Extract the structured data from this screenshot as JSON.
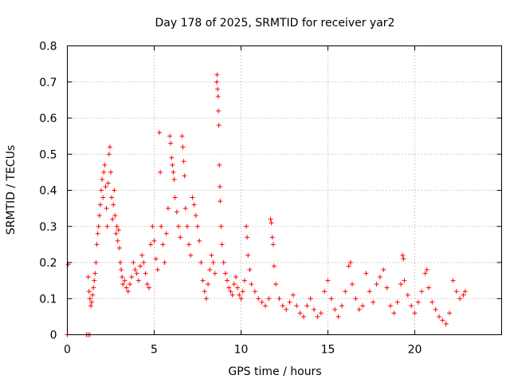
{
  "chart_data": {
    "type": "scatter",
    "title": "Day 178 of 2025, SRMTID for receiver yar2",
    "xlabel": "GPS time / hours",
    "ylabel": "SRMTID / TECUs",
    "xlim": [
      0,
      25
    ],
    "ylim": [
      0,
      0.8
    ],
    "xticks": [
      0,
      5,
      10,
      15,
      20
    ],
    "xtick_labels": [
      "0",
      "5",
      "10",
      "15",
      "20"
    ],
    "yticks": [
      0,
      0.1,
      0.2,
      0.3,
      0.4,
      0.5,
      0.6,
      0.7,
      0.8
    ],
    "ytick_labels": [
      "0",
      "0.1",
      "0.2",
      "0.3",
      "0.4",
      "0.5",
      "0.6",
      "0.7",
      "0.8"
    ],
    "grid": true,
    "marker": "+",
    "series_color": "#ff0000",
    "series": [
      {
        "name": "SRMTID",
        "points": [
          [
            0.0,
            0.0
          ],
          [
            0.05,
            0.195
          ],
          [
            1.1,
            0.0
          ],
          [
            1.2,
            0.0
          ],
          [
            1.3,
            0.0
          ],
          [
            1.2,
            0.16
          ],
          [
            1.25,
            0.12
          ],
          [
            1.3,
            0.1
          ],
          [
            1.35,
            0.08
          ],
          [
            1.4,
            0.09
          ],
          [
            1.45,
            0.11
          ],
          [
            1.5,
            0.13
          ],
          [
            1.55,
            0.15
          ],
          [
            1.6,
            0.17
          ],
          [
            1.65,
            0.2
          ],
          [
            1.7,
            0.25
          ],
          [
            1.75,
            0.28
          ],
          [
            1.8,
            0.3
          ],
          [
            1.85,
            0.33
          ],
          [
            1.9,
            0.36
          ],
          [
            1.95,
            0.4
          ],
          [
            2.0,
            0.43
          ],
          [
            2.05,
            0.38
          ],
          [
            2.1,
            0.45
          ],
          [
            2.15,
            0.47
          ],
          [
            2.2,
            0.41
          ],
          [
            2.25,
            0.35
          ],
          [
            2.3,
            0.3
          ],
          [
            2.35,
            0.42
          ],
          [
            2.4,
            0.5
          ],
          [
            2.45,
            0.52
          ],
          [
            2.5,
            0.45
          ],
          [
            2.55,
            0.38
          ],
          [
            2.6,
            0.32
          ],
          [
            2.65,
            0.36
          ],
          [
            2.7,
            0.4
          ],
          [
            2.75,
            0.33
          ],
          [
            2.8,
            0.28
          ],
          [
            2.85,
            0.3
          ],
          [
            2.9,
            0.26
          ],
          [
            2.95,
            0.29
          ],
          [
            3.0,
            0.24
          ],
          [
            3.05,
            0.2
          ],
          [
            3.1,
            0.18
          ],
          [
            3.15,
            0.16
          ],
          [
            3.2,
            0.14
          ],
          [
            3.3,
            0.15
          ],
          [
            3.4,
            0.13
          ],
          [
            3.5,
            0.12
          ],
          [
            3.6,
            0.14
          ],
          [
            3.7,
            0.16
          ],
          [
            3.8,
            0.2
          ],
          [
            3.9,
            0.18
          ],
          [
            4.0,
            0.17
          ],
          [
            4.1,
            0.15
          ],
          [
            4.2,
            0.19
          ],
          [
            4.3,
            0.22
          ],
          [
            4.4,
            0.2
          ],
          [
            4.5,
            0.17
          ],
          [
            4.6,
            0.14
          ],
          [
            4.7,
            0.13
          ],
          [
            4.8,
            0.25
          ],
          [
            4.9,
            0.3
          ],
          [
            5.0,
            0.26
          ],
          [
            5.1,
            0.21
          ],
          [
            5.2,
            0.18
          ],
          [
            5.3,
            0.56
          ],
          [
            5.35,
            0.45
          ],
          [
            5.4,
            0.3
          ],
          [
            5.5,
            0.25
          ],
          [
            5.6,
            0.2
          ],
          [
            5.7,
            0.28
          ],
          [
            5.8,
            0.35
          ],
          [
            5.9,
            0.55
          ],
          [
            5.95,
            0.53
          ],
          [
            6.0,
            0.49
          ],
          [
            6.05,
            0.47
          ],
          [
            6.1,
            0.45
          ],
          [
            6.15,
            0.43
          ],
          [
            6.2,
            0.38
          ],
          [
            6.3,
            0.34
          ],
          [
            6.4,
            0.3
          ],
          [
            6.5,
            0.27
          ],
          [
            6.6,
            0.55
          ],
          [
            6.65,
            0.52
          ],
          [
            6.7,
            0.48
          ],
          [
            6.75,
            0.44
          ],
          [
            6.8,
            0.35
          ],
          [
            6.9,
            0.3
          ],
          [
            7.0,
            0.25
          ],
          [
            7.1,
            0.22
          ],
          [
            7.2,
            0.38
          ],
          [
            7.3,
            0.36
          ],
          [
            7.4,
            0.33
          ],
          [
            7.5,
            0.3
          ],
          [
            7.6,
            0.26
          ],
          [
            7.7,
            0.2
          ],
          [
            7.8,
            0.15
          ],
          [
            7.9,
            0.12
          ],
          [
            8.0,
            0.1
          ],
          [
            8.1,
            0.14
          ],
          [
            8.2,
            0.18
          ],
          [
            8.3,
            0.22
          ],
          [
            8.4,
            0.2
          ],
          [
            8.5,
            0.17
          ],
          [
            8.6,
            0.7
          ],
          [
            8.62,
            0.72
          ],
          [
            8.65,
            0.68
          ],
          [
            8.68,
            0.66
          ],
          [
            8.7,
            0.62
          ],
          [
            8.72,
            0.58
          ],
          [
            8.75,
            0.47
          ],
          [
            8.78,
            0.41
          ],
          [
            8.8,
            0.37
          ],
          [
            8.85,
            0.3
          ],
          [
            8.9,
            0.25
          ],
          [
            9.0,
            0.2
          ],
          [
            9.1,
            0.17
          ],
          [
            9.2,
            0.15
          ],
          [
            9.3,
            0.13
          ],
          [
            9.4,
            0.12
          ],
          [
            9.5,
            0.11
          ],
          [
            9.6,
            0.14
          ],
          [
            9.7,
            0.16
          ],
          [
            9.8,
            0.13
          ],
          [
            9.9,
            0.11
          ],
          [
            10.0,
            0.1
          ],
          [
            10.1,
            0.12
          ],
          [
            10.2,
            0.15
          ],
          [
            10.3,
            0.3
          ],
          [
            10.35,
            0.27
          ],
          [
            10.4,
            0.22
          ],
          [
            10.5,
            0.18
          ],
          [
            10.6,
            0.14
          ],
          [
            10.8,
            0.12
          ],
          [
            11.0,
            0.1
          ],
          [
            11.2,
            0.09
          ],
          [
            11.4,
            0.08
          ],
          [
            11.6,
            0.1
          ],
          [
            11.7,
            0.32
          ],
          [
            11.75,
            0.31
          ],
          [
            11.8,
            0.27
          ],
          [
            11.85,
            0.25
          ],
          [
            11.9,
            0.19
          ],
          [
            12.0,
            0.14
          ],
          [
            12.2,
            0.1
          ],
          [
            12.4,
            0.08
          ],
          [
            12.6,
            0.07
          ],
          [
            12.8,
            0.09
          ],
          [
            13.0,
            0.11
          ],
          [
            13.2,
            0.08
          ],
          [
            13.4,
            0.06
          ],
          [
            13.6,
            0.05
          ],
          [
            13.8,
            0.08
          ],
          [
            14.0,
            0.1
          ],
          [
            14.2,
            0.07
          ],
          [
            14.4,
            0.05
          ],
          [
            14.6,
            0.06
          ],
          [
            14.8,
            0.12
          ],
          [
            15.0,
            0.15
          ],
          [
            15.2,
            0.1
          ],
          [
            15.4,
            0.07
          ],
          [
            15.6,
            0.05
          ],
          [
            15.8,
            0.08
          ],
          [
            16.0,
            0.12
          ],
          [
            16.2,
            0.19
          ],
          [
            16.3,
            0.2
          ],
          [
            16.4,
            0.14
          ],
          [
            16.6,
            0.1
          ],
          [
            16.8,
            0.07
          ],
          [
            17.0,
            0.08
          ],
          [
            17.2,
            0.17
          ],
          [
            17.4,
            0.12
          ],
          [
            17.6,
            0.09
          ],
          [
            17.8,
            0.14
          ],
          [
            18.0,
            0.16
          ],
          [
            18.2,
            0.18
          ],
          [
            18.4,
            0.13
          ],
          [
            18.6,
            0.08
          ],
          [
            18.8,
            0.06
          ],
          [
            19.0,
            0.09
          ],
          [
            19.2,
            0.14
          ],
          [
            19.3,
            0.22
          ],
          [
            19.35,
            0.21
          ],
          [
            19.4,
            0.15
          ],
          [
            19.6,
            0.11
          ],
          [
            19.8,
            0.08
          ],
          [
            20.0,
            0.06
          ],
          [
            20.2,
            0.09
          ],
          [
            20.4,
            0.12
          ],
          [
            20.6,
            0.17
          ],
          [
            20.7,
            0.18
          ],
          [
            20.8,
            0.13
          ],
          [
            21.0,
            0.09
          ],
          [
            21.2,
            0.07
          ],
          [
            21.4,
            0.05
          ],
          [
            21.6,
            0.04
          ],
          [
            21.8,
            0.03
          ],
          [
            22.0,
            0.06
          ],
          [
            22.2,
            0.15
          ],
          [
            22.4,
            0.12
          ],
          [
            22.6,
            0.1
          ],
          [
            22.8,
            0.11
          ],
          [
            22.9,
            0.12
          ]
        ]
      }
    ]
  }
}
